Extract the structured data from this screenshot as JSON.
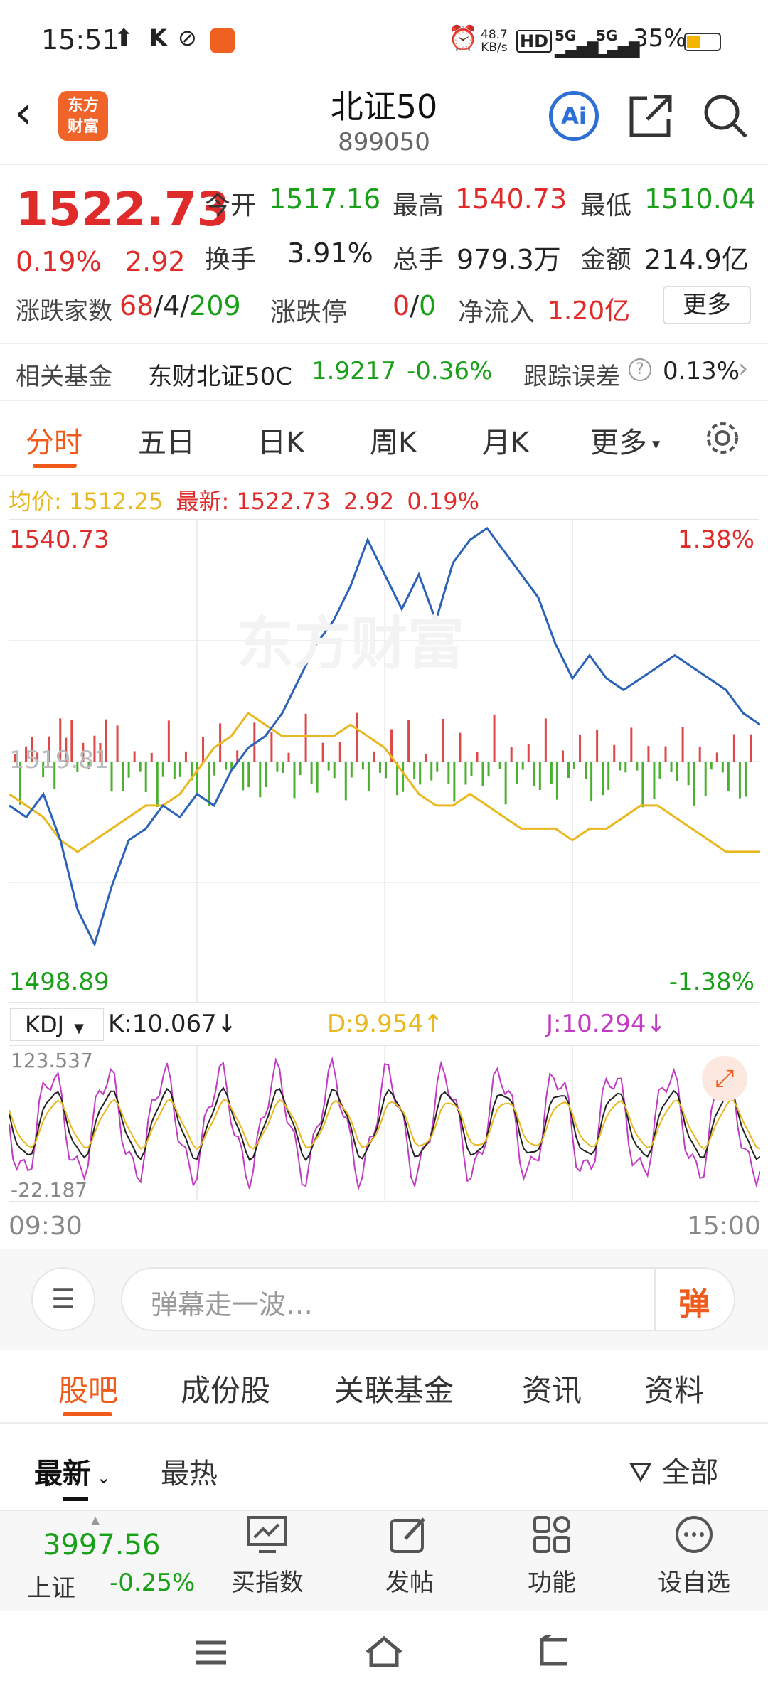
{
  "status": {
    "time": "15:51",
    "speed_value": "48.7",
    "speed_unit": "KB/s",
    "net_a": "5G",
    "net_b": "5G",
    "battery": "35%"
  },
  "header": {
    "title": "北证50",
    "code": "899050",
    "logo_line1": "东方",
    "logo_line2": "财富",
    "ai_label": "Ai"
  },
  "quote": {
    "price": "1522.73",
    "pct": "0.19%",
    "change": "2.92",
    "open_label": "今开",
    "open": "1517.16",
    "high_label": "最高",
    "high": "1540.73",
    "low_label": "最低",
    "low": "1510.04",
    "turnover_label": "换手",
    "turnover": "3.91%",
    "volume_label": "总手",
    "volume": "979.3万",
    "amount_label": "金额",
    "amount": "214.9亿",
    "breadth_label": "涨跌家数",
    "breadth_up": "68",
    "breadth_sep1": "/",
    "breadth_flat": "4",
    "breadth_sep2": "/",
    "breadth_down": "209",
    "limit_label": "涨跌停",
    "limit_up": "0",
    "limit_sep": "/",
    "limit_down": "0",
    "inflow_label": "净流入",
    "inflow": "1.20亿",
    "more_button": "更多"
  },
  "fund": {
    "label": "相关基金",
    "name": "东财北证50C",
    "nav": "1.9217",
    "pct": "-0.36%",
    "err_label": "跟踪误差",
    "err_value": "0.13%"
  },
  "chart_tabs": [
    "分时",
    "五日",
    "日K",
    "周K",
    "月K",
    "更多"
  ],
  "legend": {
    "avg_label": "均价:",
    "avg": "1512.25",
    "latest_label": "最新:",
    "latest": "1522.73",
    "change": "2.92",
    "pct": "0.19%"
  },
  "chart_labels": {
    "ymax": "1540.73",
    "ymin": "1498.89",
    "pmax": "1.38%",
    "pmin": "-1.38%",
    "mid_faint": "1519.81",
    "watermark": "东方财富"
  },
  "kdj": {
    "name": "KDJ",
    "k": "K:10.067",
    "d": "D:9.954",
    "j": "J:10.294",
    "k_arrow": "↓",
    "d_arrow": "↑",
    "j_arrow": "↓",
    "top": "123.537",
    "bottom": "-22.187",
    "t_start": "09:30",
    "t_end": "15:00"
  },
  "comment": {
    "placeholder": "弹幕走一波…",
    "danmaku_label": "弹"
  },
  "section_tabs": [
    "股吧",
    "成份股",
    "关联基金",
    "资讯",
    "资料"
  ],
  "filters": {
    "latest": "最新",
    "hot": "最热",
    "all": "全部"
  },
  "bottom_bar": {
    "index_value": "3997.56",
    "index_name": "上证",
    "index_pct": "-0.25%",
    "buy_index": "买指数",
    "post": "发帖",
    "functions": "功能",
    "watchlist": "设自选"
  },
  "colors": {
    "up": "#e02b2b",
    "down": "#18a018",
    "accent": "#f05a1a",
    "price_line": "#2a62b8",
    "avg_line": "#e9b81f"
  },
  "chart_data": {
    "type": "line",
    "x_range": [
      "09:30",
      "15:00"
    ],
    "ylim": [
      1498.89,
      1540.73
    ],
    "price_series": [
      1516,
      1515,
      1517,
      1513,
      1507,
      1504,
      1509,
      1513,
      1514,
      1516,
      1515,
      1517,
      1516,
      1519,
      1521,
      1522,
      1524,
      1527,
      1530,
      1532,
      1535,
      1539,
      1536,
      1533,
      1536,
      1532,
      1537,
      1539,
      1540,
      1538,
      1536,
      1534,
      1530,
      1527,
      1529,
      1527,
      1526,
      1527,
      1528,
      1529,
      1528,
      1527,
      1526,
      1524,
      1523
    ],
    "avg_series": [
      1517,
      1516,
      1515,
      1513,
      1512,
      1513,
      1514,
      1515,
      1516,
      1516,
      1517,
      1519,
      1521,
      1522,
      1524,
      1523,
      1522,
      1522,
      1522,
      1522,
      1523,
      1522,
      1521,
      1519,
      1517,
      1516,
      1516,
      1517,
      1516,
      1515,
      1514,
      1514,
      1514,
      1513,
      1514,
      1514,
      1515,
      1516,
      1516,
      1515,
      1514,
      1513,
      1512,
      1512,
      1512
    ]
  }
}
